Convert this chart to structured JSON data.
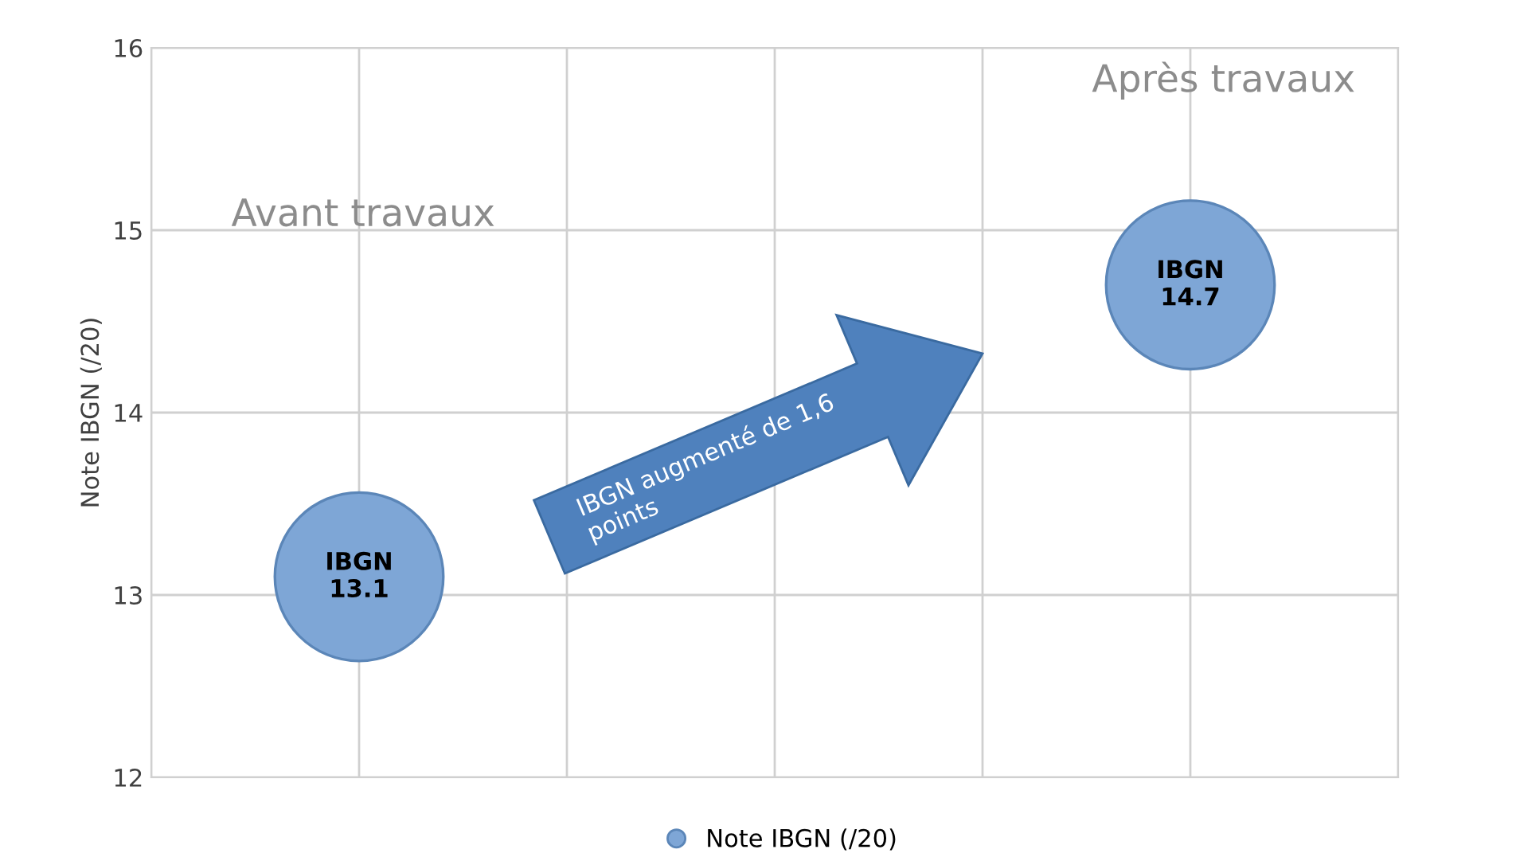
{
  "chart_data": {
    "type": "bubble",
    "ylabel": "Note IBGN (/20)",
    "categories": [
      null,
      null
    ],
    "ylim": [
      12,
      16
    ],
    "yticks": [
      12,
      13,
      14,
      15,
      16
    ],
    "series": [
      {
        "name": "Note IBGN (/20)",
        "color": "#7ea6d6",
        "values": [
          13.1,
          14.7
        ],
        "sizes": [
          1,
          1
        ],
        "value_labels": [
          "IBGN\n13.1",
          "IBGN\n14.7"
        ]
      }
    ],
    "annotations": [
      "Avant travaux",
      "Après travaux",
      "IBGN augmenté de 1,6 points"
    ],
    "grid": true,
    "legend": "bottom"
  }
}
